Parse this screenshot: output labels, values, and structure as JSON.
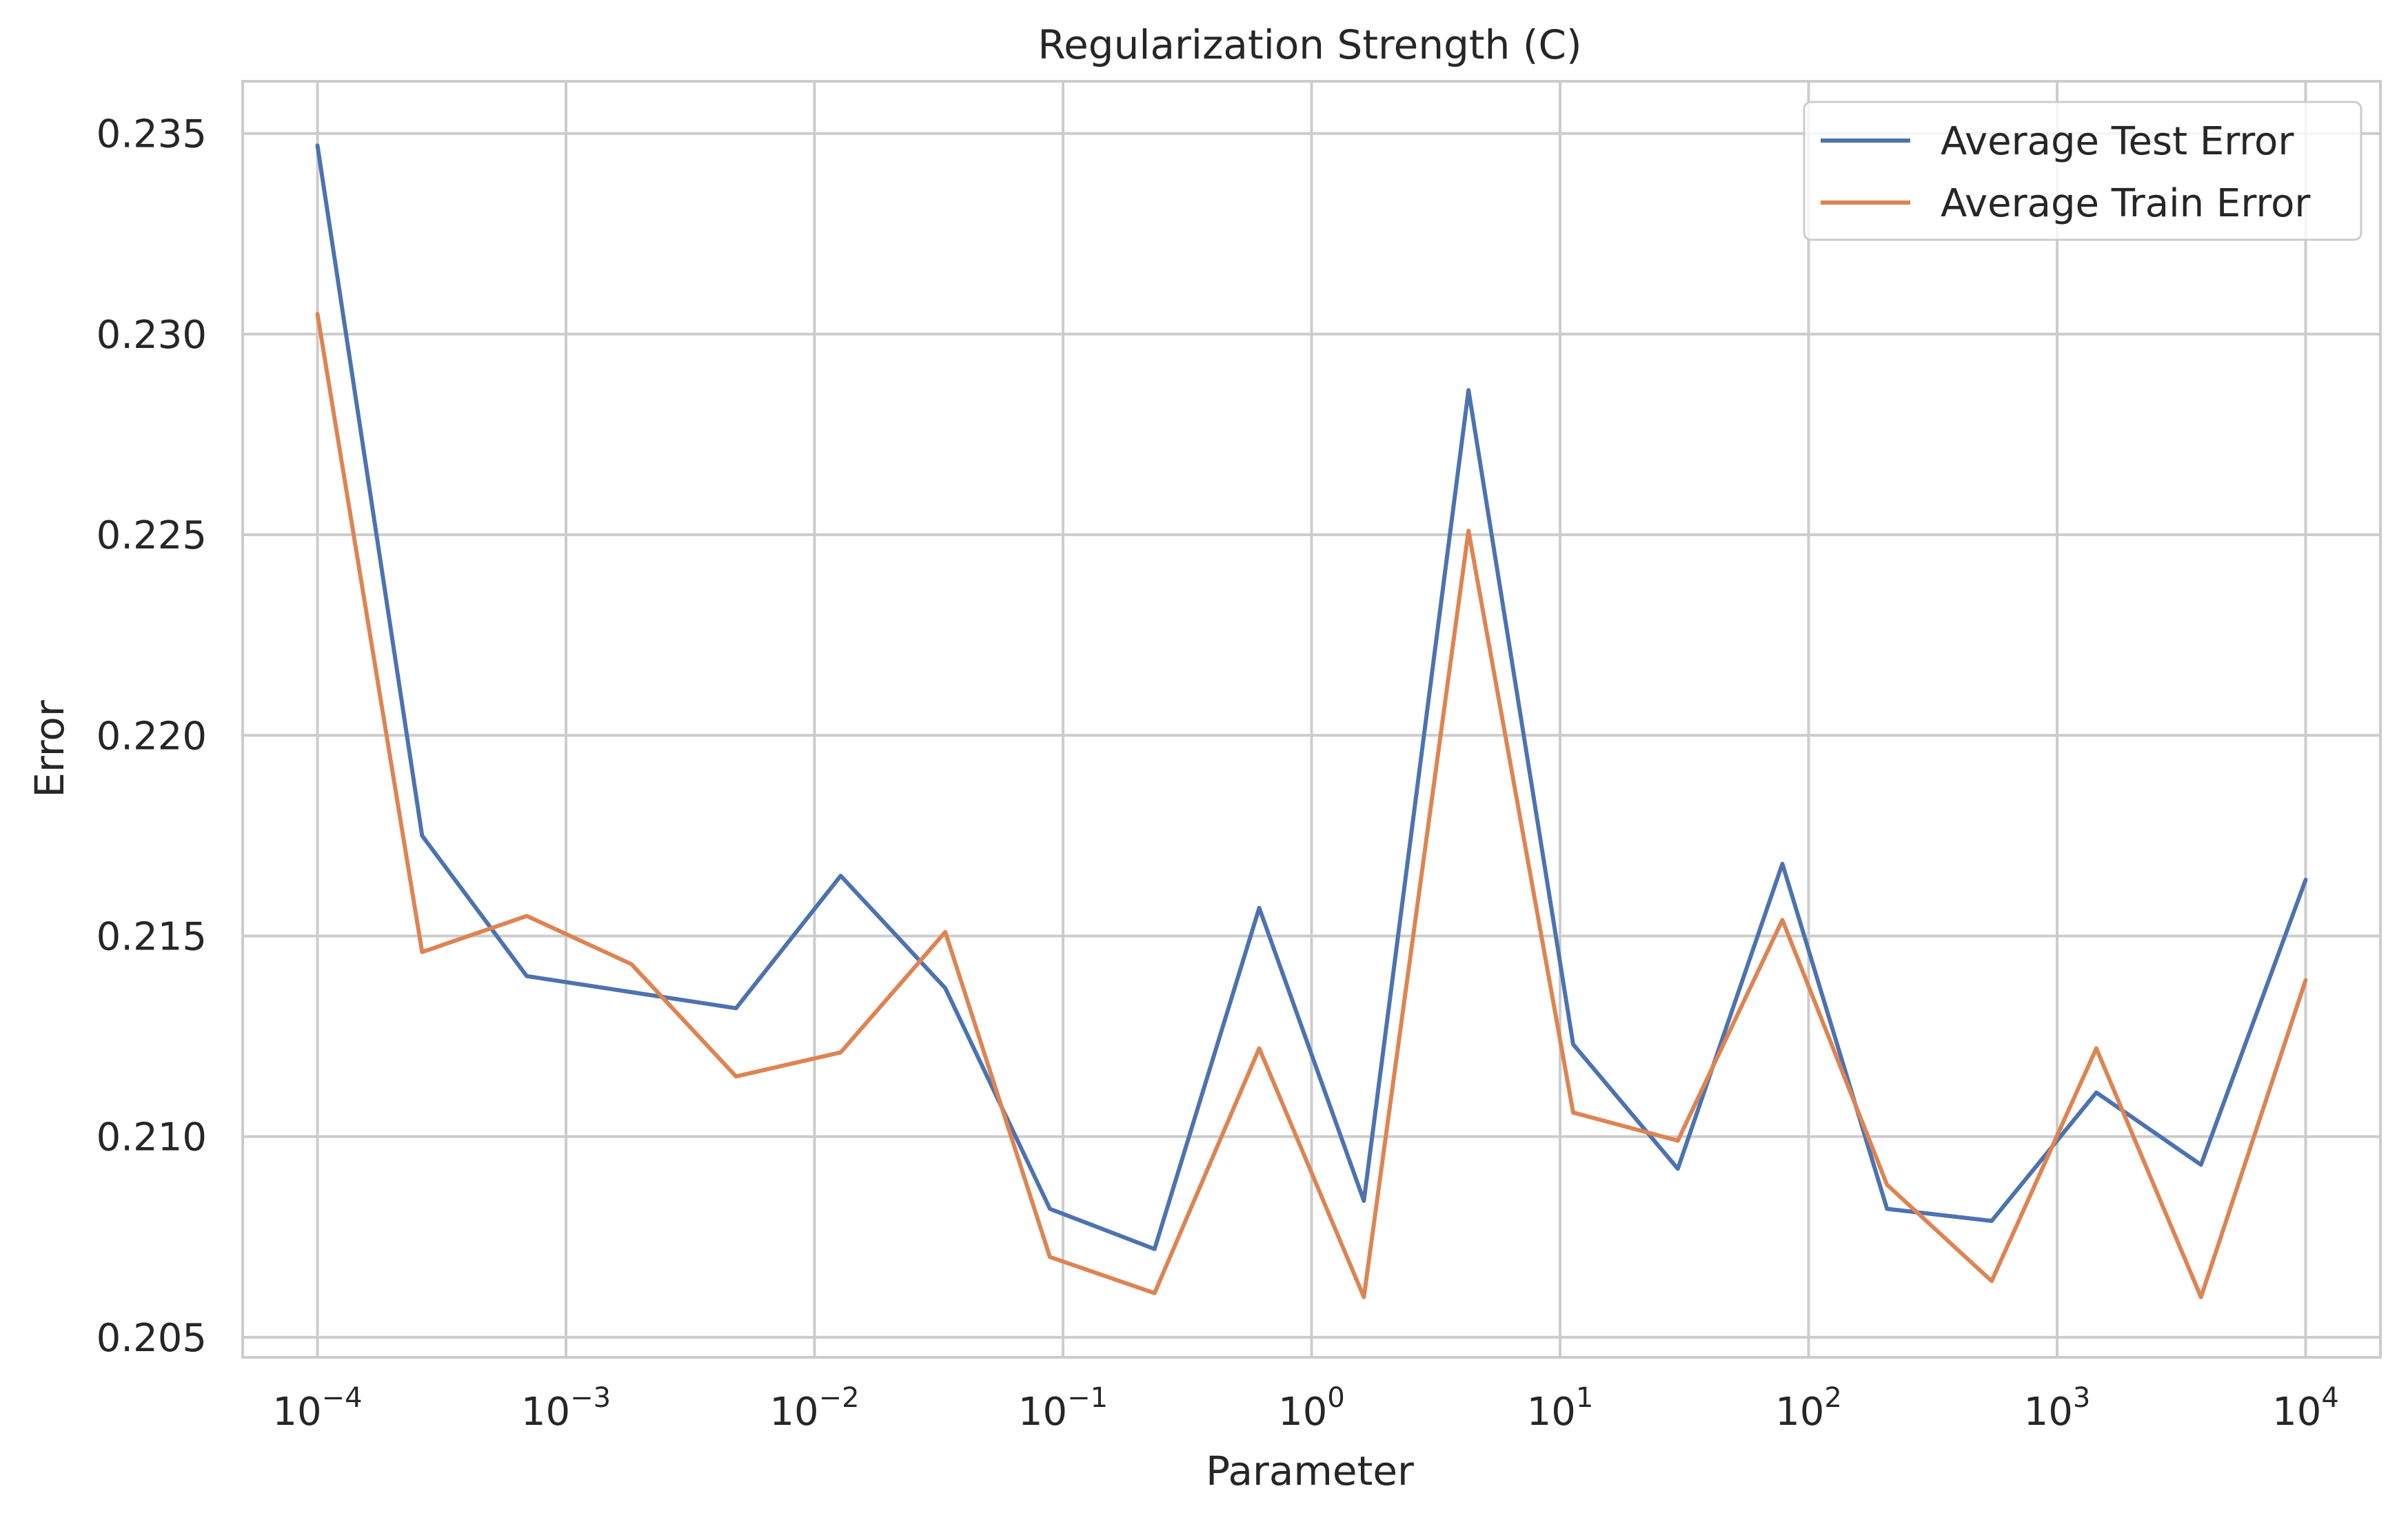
{
  "chart_data": {
    "type": "line",
    "title": "Regularization Strength (C)",
    "xlabel": "Parameter",
    "ylabel": "Error",
    "x_scale": "log",
    "xlim": [
      5e-05,
      20000
    ],
    "ylim": [
      0.2045,
      0.2363
    ],
    "x_ticks": [
      {
        "base": "10",
        "exp": "−4",
        "value": 0.0001
      },
      {
        "base": "10",
        "exp": "−3",
        "value": 0.001
      },
      {
        "base": "10",
        "exp": "−2",
        "value": 0.01
      },
      {
        "base": "10",
        "exp": "−1",
        "value": 0.1
      },
      {
        "base": "10",
        "exp": "0",
        "value": 1
      },
      {
        "base": "10",
        "exp": "1",
        "value": 10
      },
      {
        "base": "10",
        "exp": "2",
        "value": 100
      },
      {
        "base": "10",
        "exp": "3",
        "value": 1000
      },
      {
        "base": "10",
        "exp": "4",
        "value": 10000
      }
    ],
    "y_ticks": [
      "0.205",
      "0.210",
      "0.215",
      "0.220",
      "0.225",
      "0.230",
      "0.235"
    ],
    "grid": true,
    "legend_position": "top-right",
    "x": [
      0.0001,
      0.00026367,
      0.00069519,
      0.00183298,
      0.00483293,
      0.0127427,
      0.0335982,
      0.0885867,
      0.233572,
      0.615848,
      1.62378,
      4.28133,
      11.2884,
      29.7635,
      78.476,
      206.914,
      545.559,
      1438.45,
      3792.69,
      10000
    ],
    "series": [
      {
        "name": "Average Test Error",
        "color": "#4c72b0",
        "values": [
          0.2347,
          0.2175,
          0.214,
          0.2136,
          0.2132,
          0.2165,
          0.2137,
          0.2082,
          0.2072,
          0.2157,
          0.2084,
          0.2286,
          0.2123,
          0.2092,
          0.2168,
          0.2082,
          0.2079,
          0.2111,
          0.2093,
          0.2164
        ]
      },
      {
        "name": "Average Train Error",
        "color": "#dd8452",
        "values": [
          0.2305,
          0.2146,
          0.2155,
          0.2143,
          0.2115,
          0.2121,
          0.2151,
          0.207,
          0.2061,
          0.2122,
          0.206,
          0.2251,
          0.2106,
          0.2099,
          0.2154,
          0.2088,
          0.2064,
          0.2122,
          0.206,
          0.2139
        ]
      }
    ]
  }
}
